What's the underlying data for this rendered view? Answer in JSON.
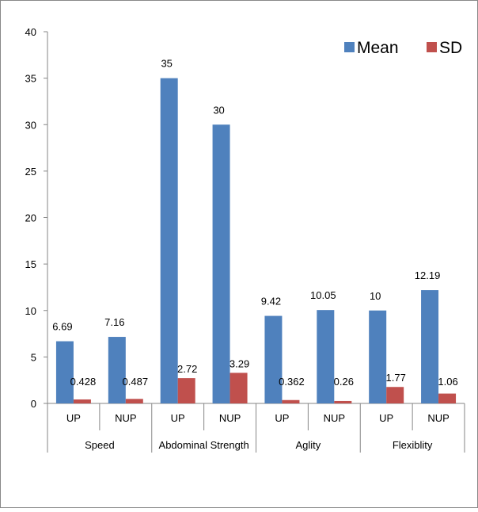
{
  "chart_data": {
    "type": "bar",
    "groups": [
      {
        "label": "Speed",
        "categories": [
          "UP",
          "NUP"
        ]
      },
      {
        "label": "Abdominal Strength",
        "categories": [
          "UP",
          "NUP"
        ]
      },
      {
        "label": "Aglity",
        "categories": [
          "UP",
          "NUP"
        ]
      },
      {
        "label": "Flexiblity",
        "categories": [
          "UP",
          "NUP"
        ]
      }
    ],
    "categories": [
      "UP",
      "NUP",
      "UP",
      "NUP",
      "UP",
      "NUP",
      "UP",
      "NUP"
    ],
    "series": [
      {
        "name": "Mean",
        "color": "#4f81bd",
        "values": [
          6.69,
          7.16,
          35,
          30,
          9.42,
          10.05,
          10,
          12.19
        ],
        "labels": [
          "6.69",
          "7.16",
          "35",
          "30",
          "9.42",
          "10.05",
          "10",
          "12.19"
        ]
      },
      {
        "name": "SD",
        "color": "#c0504d",
        "values": [
          0.428,
          0.487,
          2.72,
          3.29,
          0.362,
          0.26,
          1.77,
          1.06
        ],
        "labels": [
          "0.428",
          "0.487",
          "2.72",
          "3.29",
          "0.362",
          "0.26",
          "1.77",
          "1.06"
        ]
      }
    ],
    "ylim": [
      0,
      40
    ],
    "yticks": [
      "0",
      "5",
      "10",
      "15",
      "20",
      "25",
      "30",
      "35",
      "40"
    ],
    "grid": false,
    "legend_position": "top-right"
  }
}
